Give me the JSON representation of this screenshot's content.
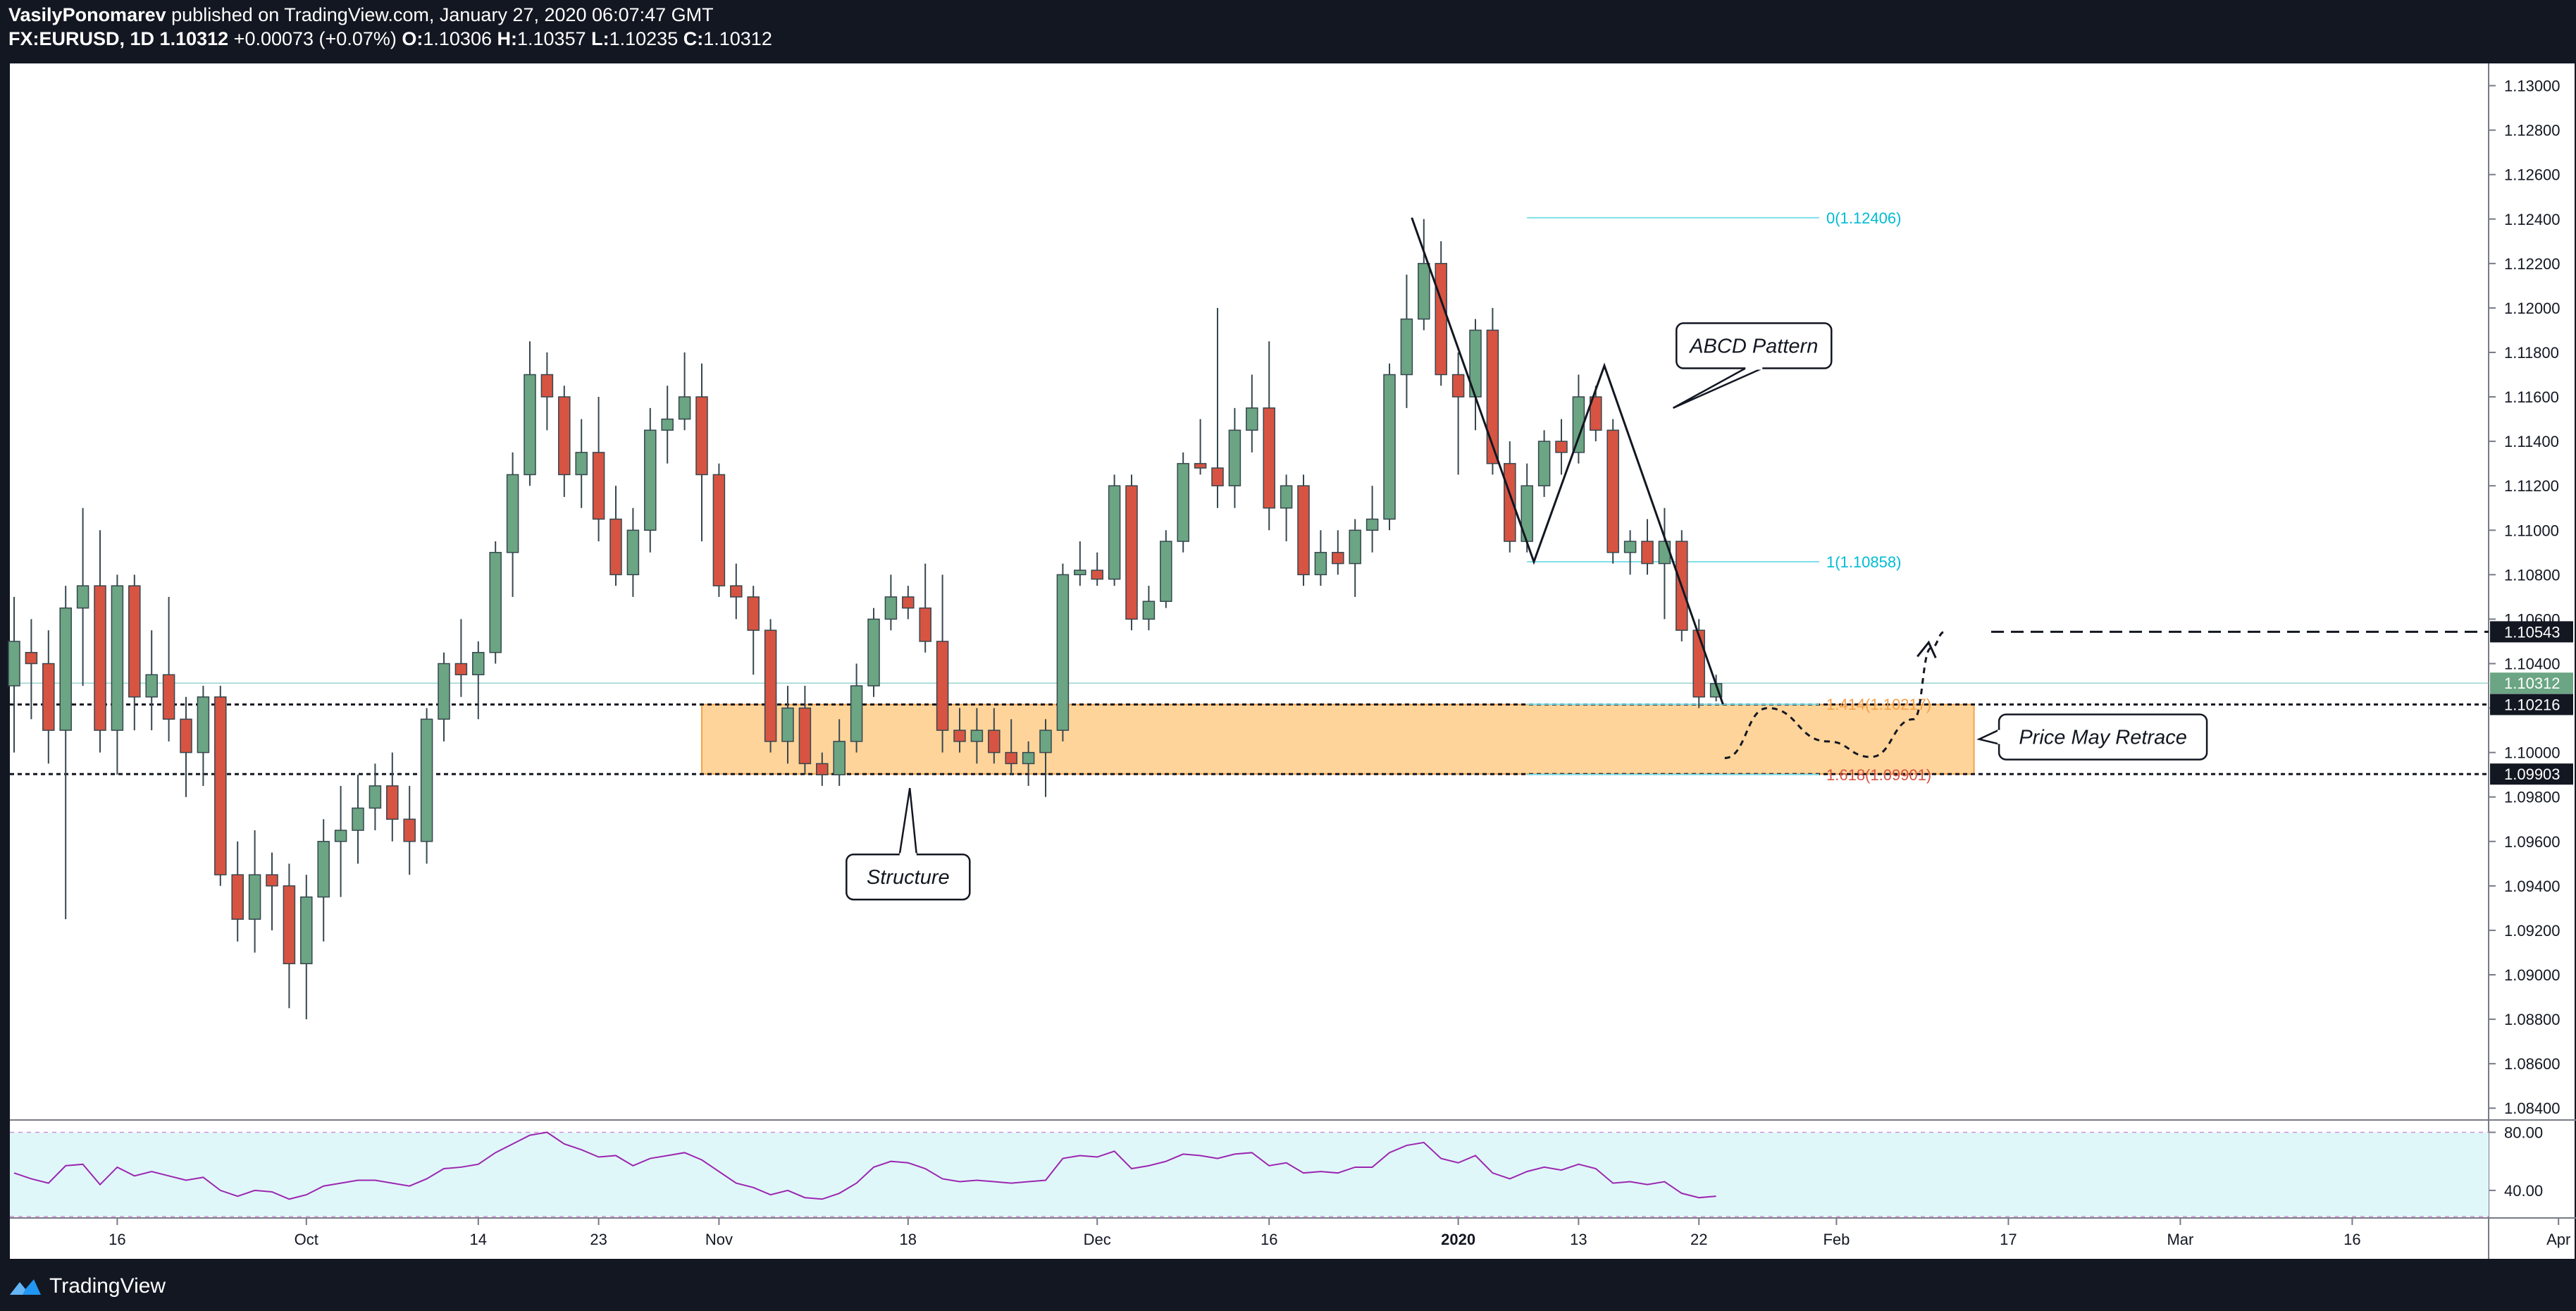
{
  "header": {
    "author": "VasilyPonomarev",
    "published_text": "published on TradingView.com, January 27, 2020 06:07:47 GMT",
    "symbol": "FX:EURUSD, 1D",
    "last": "1.10312",
    "change": "+0.00073 (+0.07%)",
    "o_label": "O:",
    "o_value": "1.10306",
    "h_label": "H:",
    "h_value": "1.10357",
    "l_label": "L:",
    "l_value": "1.10235",
    "c_label": "C:",
    "c_value": "1.10312"
  },
  "footer": {
    "brand": "TradingView"
  },
  "colors": {
    "background": "#131722",
    "chart_bg": "#ffffff",
    "bull": "#6ba583",
    "bear": "#d75442",
    "zone_fill": "#ffcc88",
    "zone_stroke": "#f5a14a",
    "fib_line": "#80deea",
    "fib_label": "#00bcd4",
    "rsi_fill": "#e0f7fa",
    "rsi_line": "#9c27b0"
  },
  "chart_data": {
    "type": "candlestick",
    "symbol": "FX:EURUSD",
    "interval": "1D",
    "ylim": [
      1.0835,
      1.131
    ],
    "y_ticks": [
      "1.13000",
      "1.12800",
      "1.12600",
      "1.12400",
      "1.12200",
      "1.12000",
      "1.11800",
      "1.11600",
      "1.11400",
      "1.11200",
      "1.11000",
      "1.10800",
      "1.10600",
      "1.10400",
      "1.10200",
      "1.10000",
      "1.09800",
      "1.09600",
      "1.09400",
      "1.09200",
      "1.09000",
      "1.08800",
      "1.08600",
      "1.08400"
    ],
    "x_labels": [
      {
        "label": "16",
        "index": 6
      },
      {
        "label": "Oct",
        "index": 17
      },
      {
        "label": "14",
        "index": 27
      },
      {
        "label": "23",
        "index": 34
      },
      {
        "label": "Nov",
        "index": 41
      },
      {
        "label": "18",
        "index": 52
      },
      {
        "label": "Dec",
        "index": 63
      },
      {
        "label": "16",
        "index": 73
      },
      {
        "label": "2020",
        "index": 84
      },
      {
        "label": "13",
        "index": 91
      },
      {
        "label": "22",
        "index": 98
      },
      {
        "label": "Feb",
        "index": 106
      },
      {
        "label": "17",
        "index": 116
      },
      {
        "label": "Mar",
        "index": 126
      },
      {
        "label": "16",
        "index": 136
      },
      {
        "label": "Apr",
        "index": 148
      }
    ],
    "candles": [
      [
        1.103,
        1.107,
        1.1,
        1.105
      ],
      [
        1.1045,
        1.106,
        1.1015,
        1.104
      ],
      [
        1.104,
        1.1055,
        1.0995,
        1.101
      ],
      [
        1.101,
        1.1075,
        1.0925,
        1.1065
      ],
      [
        1.1065,
        1.111,
        1.103,
        1.1075
      ],
      [
        1.1075,
        1.11,
        1.1,
        1.101
      ],
      [
        1.101,
        1.108,
        1.099,
        1.1075
      ],
      [
        1.1075,
        1.108,
        1.101,
        1.1025
      ],
      [
        1.1025,
        1.1055,
        1.101,
        1.1035
      ],
      [
        1.1035,
        1.107,
        1.1005,
        1.1015
      ],
      [
        1.1015,
        1.1025,
        1.098,
        1.1
      ],
      [
        1.1,
        1.103,
        1.0985,
        1.1025
      ],
      [
        1.1025,
        1.103,
        1.094,
        1.0945
      ],
      [
        1.0945,
        1.096,
        1.0915,
        1.0925
      ],
      [
        1.0925,
        1.0965,
        1.091,
        1.0945
      ],
      [
        1.0945,
        1.0955,
        1.092,
        1.094
      ],
      [
        1.094,
        1.095,
        1.0885,
        1.0905
      ],
      [
        1.0905,
        1.0945,
        1.088,
        1.0935
      ],
      [
        1.0935,
        1.097,
        1.0915,
        1.096
      ],
      [
        1.096,
        1.0985,
        1.0935,
        1.0965
      ],
      [
        1.0965,
        1.099,
        1.095,
        1.0975
      ],
      [
        1.0975,
        1.0995,
        1.0965,
        1.0985
      ],
      [
        1.0985,
        1.1,
        1.096,
        1.097
      ],
      [
        1.097,
        1.0985,
        1.0945,
        1.096
      ],
      [
        1.096,
        1.102,
        1.095,
        1.1015
      ],
      [
        1.1015,
        1.1045,
        1.1005,
        1.104
      ],
      [
        1.104,
        1.106,
        1.1025,
        1.1035
      ],
      [
        1.1035,
        1.105,
        1.1015,
        1.1045
      ],
      [
        1.1045,
        1.1095,
        1.104,
        1.109
      ],
      [
        1.109,
        1.1135,
        1.107,
        1.1125
      ],
      [
        1.1125,
        1.1185,
        1.112,
        1.117
      ],
      [
        1.117,
        1.118,
        1.1145,
        1.116
      ],
      [
        1.116,
        1.1165,
        1.1115,
        1.1125
      ],
      [
        1.1125,
        1.115,
        1.111,
        1.1135
      ],
      [
        1.1135,
        1.116,
        1.1095,
        1.1105
      ],
      [
        1.1105,
        1.112,
        1.1075,
        1.108
      ],
      [
        1.108,
        1.111,
        1.107,
        1.11
      ],
      [
        1.11,
        1.1155,
        1.109,
        1.1145
      ],
      [
        1.1145,
        1.1165,
        1.113,
        1.115
      ],
      [
        1.115,
        1.118,
        1.1145,
        1.116
      ],
      [
        1.116,
        1.1175,
        1.1095,
        1.1125
      ],
      [
        1.1125,
        1.113,
        1.107,
        1.1075
      ],
      [
        1.1075,
        1.1085,
        1.106,
        1.107
      ],
      [
        1.107,
        1.1075,
        1.1035,
        1.1055
      ],
      [
        1.1055,
        1.106,
        1.1,
        1.1005
      ],
      [
        1.1005,
        1.103,
        1.0995,
        1.102
      ],
      [
        1.102,
        1.103,
        1.099,
        1.0995
      ],
      [
        1.0995,
        1.1,
        1.0985,
        1.099
      ],
      [
        1.099,
        1.1015,
        1.0985,
        1.1005
      ],
      [
        1.1005,
        1.104,
        1.1,
        1.103
      ],
      [
        1.103,
        1.1065,
        1.1025,
        1.106
      ],
      [
        1.106,
        1.108,
        1.1055,
        1.107
      ],
      [
        1.107,
        1.1075,
        1.106,
        1.1065
      ],
      [
        1.1065,
        1.1085,
        1.1045,
        1.105
      ],
      [
        1.105,
        1.108,
        1.1,
        1.101
      ],
      [
        1.101,
        1.102,
        1.1,
        1.1005
      ],
      [
        1.1005,
        1.102,
        1.0995,
        1.101
      ],
      [
        1.101,
        1.102,
        1.0995,
        1.1
      ],
      [
        1.1,
        1.1015,
        1.099,
        1.0995
      ],
      [
        1.0995,
        1.1005,
        1.0985,
        1.1
      ],
      [
        1.1,
        1.1015,
        1.098,
        1.101
      ],
      [
        1.101,
        1.1085,
        1.1005,
        1.108
      ],
      [
        1.108,
        1.1095,
        1.1075,
        1.1082
      ],
      [
        1.1082,
        1.109,
        1.1075,
        1.1078
      ],
      [
        1.1078,
        1.1125,
        1.1075,
        1.112
      ],
      [
        1.112,
        1.1125,
        1.1055,
        1.106
      ],
      [
        1.106,
        1.1075,
        1.1055,
        1.1068
      ],
      [
        1.1068,
        1.11,
        1.1065,
        1.1095
      ],
      [
        1.1095,
        1.1135,
        1.109,
        1.113
      ],
      [
        1.113,
        1.115,
        1.1125,
        1.1128
      ],
      [
        1.1128,
        1.12,
        1.111,
        1.112
      ],
      [
        1.112,
        1.1155,
        1.111,
        1.1145
      ],
      [
        1.1145,
        1.117,
        1.1135,
        1.1155
      ],
      [
        1.1155,
        1.1185,
        1.11,
        1.111
      ],
      [
        1.111,
        1.1125,
        1.1095,
        1.112
      ],
      [
        1.112,
        1.1125,
        1.1075,
        1.108
      ],
      [
        1.108,
        1.11,
        1.1075,
        1.109
      ],
      [
        1.109,
        1.11,
        1.108,
        1.1085
      ],
      [
        1.1085,
        1.1105,
        1.107,
        1.11
      ],
      [
        1.11,
        1.112,
        1.109,
        1.1105
      ],
      [
        1.1105,
        1.1175,
        1.11,
        1.117
      ],
      [
        1.117,
        1.1215,
        1.1155,
        1.1195
      ],
      [
        1.1195,
        1.124,
        1.119,
        1.122
      ],
      [
        1.122,
        1.123,
        1.1165,
        1.117
      ],
      [
        1.117,
        1.118,
        1.1125,
        1.116
      ],
      [
        1.116,
        1.1195,
        1.1145,
        1.119
      ],
      [
        1.119,
        1.12,
        1.1125,
        1.113
      ],
      [
        1.113,
        1.114,
        1.109,
        1.1095
      ],
      [
        1.1095,
        1.113,
        1.109,
        1.112
      ],
      [
        1.112,
        1.1145,
        1.1115,
        1.114
      ],
      [
        1.114,
        1.115,
        1.1125,
        1.1135
      ],
      [
        1.1135,
        1.117,
        1.113,
        1.116
      ],
      [
        1.116,
        1.1165,
        1.114,
        1.1145
      ],
      [
        1.1145,
        1.115,
        1.1085,
        1.109
      ],
      [
        1.109,
        1.11,
        1.108,
        1.1095
      ],
      [
        1.1095,
        1.1105,
        1.108,
        1.1085
      ],
      [
        1.1085,
        1.111,
        1.106,
        1.1095
      ],
      [
        1.1095,
        1.11,
        1.105,
        1.1055
      ],
      [
        1.1055,
        1.106,
        1.102,
        1.1025
      ],
      [
        1.1025,
        1.1035,
        1.1023,
        1.1031
      ]
    ],
    "price_scale_labels": [
      {
        "text": "1.10543",
        "value": 1.10543,
        "style": "dark"
      },
      {
        "text": "1.10312",
        "value": 1.10312,
        "style": "green"
      },
      {
        "text": "1.10216",
        "value": 1.10216,
        "style": "dark"
      },
      {
        "text": "1.09903",
        "value": 1.09903,
        "style": "dark"
      }
    ],
    "horizontal_levels": [
      {
        "value": 1.10216,
        "style": "dotted"
      },
      {
        "value": 1.09903,
        "style": "dotted"
      },
      {
        "value": 1.10543,
        "style": "dashed",
        "from_index": 115
      }
    ],
    "zone": {
      "from_index": 40,
      "to_index": 114,
      "top": 1.10216,
      "bottom": 1.09903
    },
    "fib_levels": [
      {
        "label": "0(1.12406)",
        "value": 1.12406,
        "from_index": 88,
        "to_index": 105,
        "color_key": "fib_label"
      },
      {
        "label": "1(1.10858)",
        "value": 1.10858,
        "from_index": 88,
        "to_index": 105,
        "color_key": "fib_label"
      },
      {
        "label": "1.414(1.10217)",
        "value": 1.10217,
        "from_index": 88,
        "to_index": 105,
        "color_key": "zone_stroke"
      },
      {
        "label": "1.618(1.09901)",
        "value": 1.09901,
        "from_index": 88,
        "to_index": 105,
        "color_key": "bear"
      }
    ],
    "abcd_points": [
      {
        "index": 81.3,
        "value": 1.12406
      },
      {
        "index": 88.4,
        "value": 1.10858
      },
      {
        "index": 92.5,
        "value": 1.1174
      },
      {
        "index": 99.4,
        "value": 1.10217
      }
    ],
    "callouts": [
      {
        "text": "ABCD Pattern",
        "index": 101.2,
        "value": 1.1183,
        "tail_index": 96.5,
        "tail_value": 1.1155
      },
      {
        "text": "Structure",
        "index": 52.0,
        "value": 1.0944,
        "tail_index": 52.1,
        "tail_value": 1.0984
      },
      {
        "text": "Price May Retrace",
        "index": 121.5,
        "value": 1.1007,
        "tail_index": 114.3,
        "tail_value": 1.1006
      }
    ],
    "projection": [
      {
        "index": 99.5,
        "value": 1.09975
      },
      {
        "index": 102.0,
        "value": 1.102
      },
      {
        "index": 105.5,
        "value": 1.1005
      },
      {
        "index": 108.0,
        "value": 1.0998
      },
      {
        "index": 110.5,
        "value": 1.1015
      },
      {
        "index": 111.5,
        "value": 1.1047
      },
      {
        "index": 112.3,
        "value": 1.10543
      }
    ],
    "projection_arrow_index": 111.2,
    "rsi": {
      "ylim": [
        22,
        88
      ],
      "upper": 80,
      "lower": 20,
      "ticks": [
        "80.00",
        "40.00"
      ],
      "values": [
        52,
        48,
        45,
        57,
        58,
        44,
        56,
        50,
        53,
        50,
        47,
        49,
        40,
        36,
        40,
        39,
        34,
        37,
        43,
        45,
        47,
        47,
        45,
        43,
        48,
        55,
        56,
        58,
        66,
        72,
        78,
        80,
        72,
        68,
        63,
        64,
        57,
        62,
        64,
        66,
        61,
        53,
        45,
        42,
        37,
        40,
        35,
        34,
        38,
        45,
        56,
        60,
        59,
        55,
        48,
        46,
        47,
        46,
        45,
        46,
        47,
        62,
        64,
        63,
        67,
        55,
        57,
        60,
        65,
        64,
        62,
        65,
        66,
        57,
        59,
        52,
        53,
        52,
        56,
        56,
        66,
        71,
        73,
        62,
        59,
        64,
        52,
        48,
        53,
        56,
        54,
        58,
        55,
        45,
        46,
        44,
        46,
        38,
        35,
        36
      ]
    }
  }
}
